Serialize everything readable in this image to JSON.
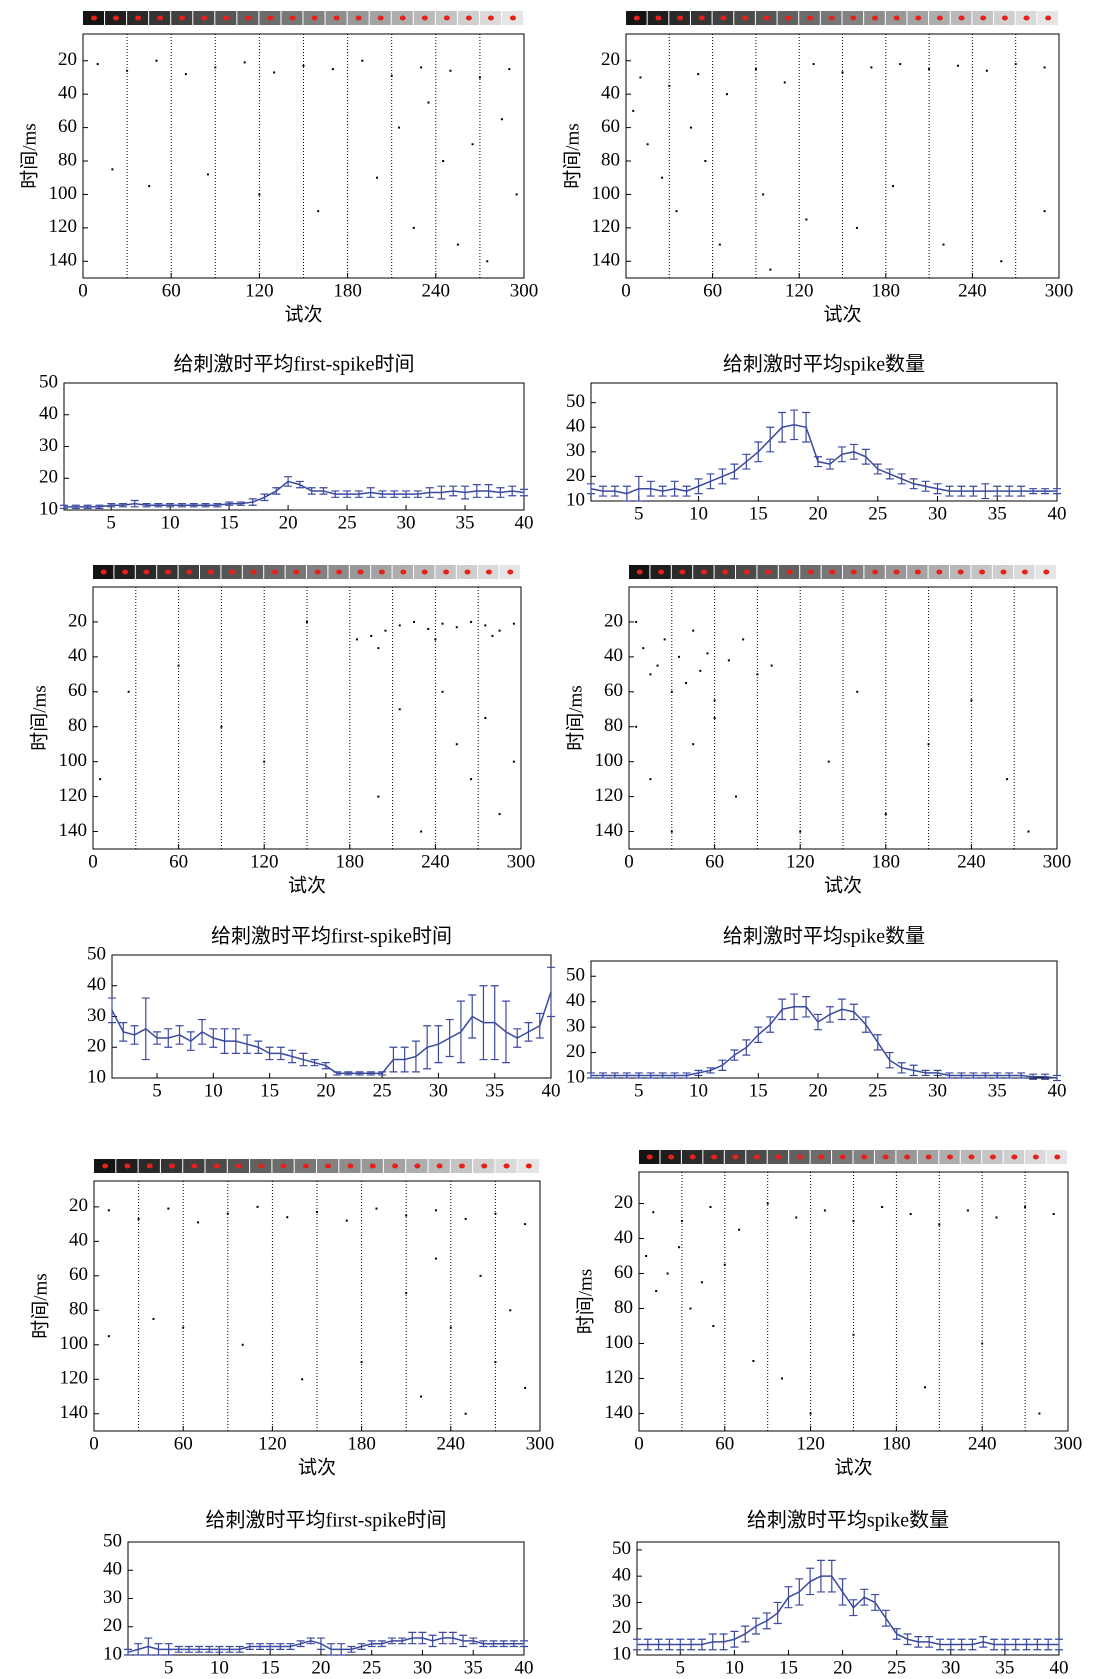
{
  "chart_data": [
    {
      "type": "raster",
      "xlabel": "试次",
      "ylabel": "时间/ms",
      "xlim": [
        0,
        300
      ],
      "ylim": [
        150,
        4
      ],
      "xticks": [
        0,
        60,
        120,
        180,
        240,
        300
      ],
      "yticks": [
        20,
        40,
        60,
        80,
        100,
        120,
        140
      ],
      "dividers": [
        30,
        60,
        90,
        120,
        150,
        180,
        210,
        240,
        270
      ],
      "color": "#000000",
      "x": [
        10,
        30,
        50,
        70,
        90,
        110,
        130,
        150,
        170,
        190,
        210,
        230,
        250,
        270,
        290,
        20,
        45,
        85,
        120,
        160,
        200,
        215,
        225,
        235,
        245,
        255,
        265,
        275,
        285,
        295
      ],
      "values": [
        22,
        26,
        20,
        28,
        24,
        21,
        27,
        23,
        25,
        20,
        29,
        24,
        26,
        30,
        25,
        85,
        95,
        88,
        100,
        110,
        90,
        60,
        120,
        45,
        80,
        130,
        70,
        140,
        55,
        100
      ]
    },
    {
      "type": "raster",
      "xlabel": "试次",
      "ylabel": "时间/ms",
      "xlim": [
        0,
        300
      ],
      "ylim": [
        150,
        4
      ],
      "xticks": [
        0,
        60,
        120,
        180,
        240,
        300
      ],
      "yticks": [
        20,
        40,
        60,
        80,
        100,
        120,
        140
      ],
      "dividers": [
        30,
        60,
        90,
        120,
        150,
        180,
        210,
        240,
        270
      ],
      "color": "#000000",
      "x": [
        10,
        30,
        50,
        70,
        90,
        110,
        130,
        150,
        170,
        190,
        210,
        230,
        250,
        270,
        290,
        5,
        15,
        25,
        35,
        45,
        55,
        65,
        95,
        100,
        125,
        160,
        185,
        220,
        260,
        290
      ],
      "values": [
        30,
        35,
        28,
        40,
        25,
        33,
        22,
        27,
        24,
        22,
        25,
        23,
        26,
        22,
        24,
        50,
        70,
        90,
        110,
        60,
        80,
        130,
        100,
        145,
        115,
        120,
        95,
        130,
        140,
        110
      ]
    },
    {
      "type": "line",
      "title": "给刺激时平均first-spike时间",
      "color": "#3b4aa0",
      "xlim": [
        1,
        40
      ],
      "ylim": [
        10,
        50
      ],
      "xticks": [
        5,
        10,
        15,
        20,
        25,
        30,
        35,
        40
      ],
      "yticks": [
        10,
        20,
        30,
        40,
        50
      ],
      "x": [
        1,
        2,
        3,
        4,
        5,
        6,
        7,
        8,
        9,
        10,
        11,
        12,
        13,
        14,
        15,
        16,
        17,
        18,
        19,
        20,
        21,
        22,
        23,
        24,
        25,
        26,
        27,
        28,
        29,
        30,
        31,
        32,
        33,
        34,
        35,
        36,
        37,
        38,
        39,
        40
      ],
      "values": [
        11,
        11,
        11,
        11,
        11.5,
        11.5,
        12,
        11.5,
        11.5,
        11.5,
        11.5,
        11.5,
        11.5,
        11.5,
        12,
        12,
        12.5,
        14,
        16,
        19,
        18,
        16,
        16,
        15,
        15,
        15,
        15.5,
        15,
        15,
        15,
        15,
        15.5,
        15.5,
        16,
        15.5,
        16,
        16,
        15.5,
        16,
        15.5
      ],
      "errors": [
        0.5,
        0.5,
        0.5,
        0.5,
        0.5,
        0.5,
        1,
        0.5,
        0.5,
        0.5,
        0.5,
        0.5,
        0.5,
        0.5,
        0.5,
        0.5,
        1,
        1,
        1,
        1.5,
        1,
        1,
        1,
        1,
        1,
        1,
        1.5,
        1,
        1,
        1,
        1,
        1.5,
        2,
        1.5,
        2,
        2,
        2,
        1.5,
        1.5,
        1
      ]
    },
    {
      "type": "line",
      "title": "给刺激时平均spike数量",
      "color": "#3b4aa0",
      "xlim": [
        1,
        40
      ],
      "ylim": [
        10,
        58
      ],
      "xticks": [
        5,
        10,
        15,
        20,
        25,
        30,
        35,
        40
      ],
      "yticks": [
        10,
        20,
        30,
        40,
        50
      ],
      "x": [
        1,
        2,
        3,
        4,
        5,
        6,
        7,
        8,
        9,
        10,
        11,
        12,
        13,
        14,
        15,
        16,
        17,
        18,
        19,
        20,
        21,
        22,
        23,
        24,
        25,
        26,
        27,
        28,
        29,
        30,
        31,
        32,
        33,
        34,
        35,
        36,
        37,
        38,
        39,
        40
      ],
      "values": [
        15,
        14,
        14,
        13,
        15,
        15,
        14,
        15,
        14,
        16,
        18,
        20,
        22,
        26,
        30,
        35,
        40,
        41,
        40,
        26,
        25,
        29,
        30,
        28,
        23,
        21,
        19,
        17,
        16,
        15,
        14,
        14,
        14,
        14,
        14,
        14,
        14,
        14,
        14,
        14
      ],
      "errors": [
        2,
        2,
        2,
        3,
        5,
        3,
        2,
        3,
        2,
        3,
        3,
        3,
        3,
        3,
        4,
        5,
        6,
        6,
        6,
        2,
        2,
        3,
        3,
        3,
        2,
        2,
        2,
        2,
        2,
        2,
        2,
        2,
        2,
        3,
        2,
        2,
        2,
        1,
        1,
        1
      ]
    },
    {
      "type": "raster",
      "xlabel": "试次",
      "ylabel": "时间/ms",
      "xlim": [
        0,
        300
      ],
      "ylim": [
        150,
        0
      ],
      "xticks": [
        0,
        60,
        120,
        180,
        240,
        300
      ],
      "yticks": [
        20,
        40,
        60,
        80,
        100,
        120,
        140
      ],
      "dividers": [
        30,
        60,
        90,
        120,
        150,
        180,
        210,
        240,
        270
      ],
      "color": "#000000",
      "x": [
        185,
        195,
        205,
        215,
        225,
        235,
        245,
        255,
        265,
        275,
        285,
        295,
        200,
        240,
        280,
        5,
        25,
        60,
        90,
        120,
        150,
        200,
        215,
        230,
        245,
        255,
        265,
        275,
        285,
        295
      ],
      "values": [
        30,
        28,
        25,
        22,
        20,
        24,
        21,
        23,
        20,
        22,
        25,
        21,
        35,
        30,
        28,
        110,
        60,
        45,
        80,
        100,
        20,
        120,
        70,
        140,
        60,
        90,
        110,
        75,
        130,
        100
      ]
    },
    {
      "type": "raster",
      "xlabel": "试次",
      "ylabel": "时间/ms",
      "xlim": [
        0,
        300
      ],
      "ylim": [
        150,
        0
      ],
      "xticks": [
        0,
        60,
        120,
        180,
        240,
        300
      ],
      "yticks": [
        20,
        40,
        60,
        80,
        100,
        120,
        140
      ],
      "dividers": [
        30,
        60,
        90,
        120,
        150,
        180,
        210,
        240,
        270
      ],
      "color": "#000000",
      "x": [
        5,
        10,
        15,
        20,
        25,
        30,
        35,
        40,
        45,
        50,
        55,
        60,
        70,
        80,
        90,
        5,
        15,
        30,
        45,
        60,
        75,
        100,
        120,
        140,
        160,
        180,
        210,
        240,
        265,
        280
      ],
      "values": [
        20,
        35,
        50,
        45,
        30,
        60,
        40,
        55,
        25,
        48,
        38,
        65,
        42,
        30,
        50,
        80,
        110,
        140,
        90,
        75,
        120,
        45,
        140,
        100,
        60,
        130,
        90,
        65,
        110,
        140
      ]
    },
    {
      "type": "line",
      "title": "给刺激时平均first-spike时间",
      "color": "#3b4aa0",
      "xlim": [
        1,
        40
      ],
      "ylim": [
        10,
        50
      ],
      "xticks": [
        5,
        10,
        15,
        20,
        25,
        30,
        35,
        40
      ],
      "yticks": [
        10,
        20,
        30,
        40,
        50
      ],
      "x": [
        1,
        2,
        3,
        4,
        5,
        6,
        7,
        8,
        9,
        10,
        11,
        12,
        13,
        14,
        15,
        16,
        17,
        18,
        19,
        20,
        21,
        22,
        23,
        24,
        25,
        26,
        27,
        28,
        29,
        30,
        31,
        32,
        33,
        34,
        35,
        36,
        37,
        38,
        39,
        40
      ],
      "values": [
        32,
        25,
        24,
        26,
        23,
        23,
        24,
        22,
        25,
        23,
        22,
        22,
        21,
        20,
        18,
        18,
        17,
        16,
        15,
        14,
        11.5,
        11.5,
        11.5,
        11.5,
        11.5,
        16,
        16,
        17,
        20,
        21,
        23,
        25,
        30,
        28,
        28,
        25,
        23,
        25,
        27,
        38
      ],
      "errors": [
        4,
        3,
        3,
        10,
        2,
        3,
        3,
        3,
        4,
        3,
        4,
        4,
        3,
        2,
        2,
        2,
        2,
        2,
        1,
        1,
        0.5,
        0.5,
        0.5,
        0.5,
        0.5,
        4,
        4,
        5,
        7,
        6,
        6,
        10,
        7,
        12,
        12,
        10,
        3,
        3,
        4,
        8
      ]
    },
    {
      "type": "line",
      "title": "给刺激时平均spike数量",
      "color": "#3b4aa0",
      "xlim": [
        1,
        40
      ],
      "ylim": [
        10,
        56
      ],
      "xticks": [
        5,
        10,
        15,
        20,
        25,
        30,
        35,
        40
      ],
      "yticks": [
        10,
        20,
        30,
        40,
        50
      ],
      "x": [
        1,
        2,
        3,
        4,
        5,
        6,
        7,
        8,
        9,
        10,
        11,
        12,
        13,
        14,
        15,
        16,
        17,
        18,
        19,
        20,
        21,
        22,
        23,
        24,
        25,
        26,
        27,
        28,
        29,
        30,
        31,
        32,
        33,
        34,
        35,
        36,
        37,
        38,
        39,
        40
      ],
      "values": [
        11,
        11,
        11,
        11,
        11,
        11,
        11,
        11,
        11,
        12,
        13,
        15,
        19,
        22,
        27,
        31,
        37,
        38,
        38,
        32,
        35,
        37,
        36,
        31,
        24,
        17,
        14,
        13,
        12,
        12,
        11,
        11,
        11,
        11,
        11,
        11,
        11,
        10.5,
        10.5,
        10
      ],
      "errors": [
        1,
        1,
        1,
        1,
        1,
        1,
        1,
        1,
        1,
        1,
        1,
        2,
        2,
        3,
        3,
        3,
        4,
        5,
        4,
        3,
        3,
        4,
        3,
        3,
        3,
        3,
        2,
        2,
        1,
        1,
        1,
        1,
        1,
        1,
        1,
        1,
        1,
        1,
        1,
        1
      ]
    },
    {
      "type": "raster",
      "xlabel": "试次",
      "ylabel": "时间/ms",
      "xlim": [
        0,
        300
      ],
      "ylim": [
        150,
        5
      ],
      "xticks": [
        0,
        60,
        120,
        180,
        240,
        300
      ],
      "yticks": [
        20,
        40,
        60,
        80,
        100,
        120,
        140
      ],
      "dividers": [
        30,
        60,
        90,
        120,
        150,
        180,
        210,
        240,
        270
      ],
      "color": "#000000",
      "x": [
        10,
        30,
        50,
        70,
        90,
        110,
        130,
        150,
        170,
        190,
        210,
        230,
        250,
        270,
        290,
        10,
        40,
        60,
        100,
        140,
        180,
        210,
        220,
        230,
        240,
        250,
        260,
        270,
        280,
        290
      ],
      "values": [
        22,
        27,
        21,
        29,
        24,
        20,
        26,
        23,
        28,
        21,
        25,
        22,
        27,
        24,
        30,
        95,
        85,
        90,
        100,
        120,
        110,
        70,
        130,
        50,
        90,
        140,
        60,
        110,
        80,
        125
      ]
    },
    {
      "type": "raster",
      "xlabel": "试次",
      "ylabel": "时间/ms",
      "xlim": [
        0,
        300
      ],
      "ylim": [
        150,
        2
      ],
      "xticks": [
        0,
        60,
        120,
        180,
        240,
        300
      ],
      "yticks": [
        20,
        40,
        60,
        80,
        100,
        120,
        140
      ],
      "dividers": [
        30,
        60,
        90,
        120,
        150,
        180,
        210,
        240,
        270
      ],
      "color": "#000000",
      "x": [
        10,
        30,
        50,
        70,
        90,
        110,
        130,
        150,
        170,
        190,
        210,
        230,
        250,
        270,
        290,
        5,
        12,
        20,
        28,
        36,
        44,
        52,
        60,
        80,
        100,
        120,
        150,
        200,
        240,
        280
      ],
      "values": [
        25,
        30,
        22,
        35,
        20,
        28,
        24,
        30,
        22,
        26,
        32,
        24,
        28,
        22,
        26,
        50,
        70,
        60,
        45,
        80,
        65,
        90,
        55,
        110,
        120,
        140,
        95,
        125,
        100,
        140
      ]
    },
    {
      "type": "line",
      "title": "给刺激时平均first-spike时间",
      "color": "#3b4aa0",
      "xlim": [
        1,
        40
      ],
      "ylim": [
        10,
        50
      ],
      "xticks": [
        5,
        10,
        15,
        20,
        25,
        30,
        35,
        40
      ],
      "yticks": [
        10,
        20,
        30,
        40,
        50
      ],
      "x": [
        1,
        2,
        3,
        4,
        5,
        6,
        7,
        8,
        9,
        10,
        11,
        12,
        13,
        14,
        15,
        16,
        17,
        18,
        19,
        20,
        21,
        22,
        23,
        24,
        25,
        26,
        27,
        28,
        29,
        30,
        31,
        32,
        33,
        34,
        35,
        36,
        37,
        38,
        39,
        40
      ],
      "values": [
        11,
        12,
        13,
        12,
        12,
        12,
        12,
        12,
        12,
        12,
        12,
        12,
        13,
        13,
        13,
        13,
        13,
        14,
        15,
        14,
        12,
        12,
        12,
        13,
        14,
        14,
        15,
        15,
        16,
        16,
        15,
        16,
        16,
        15,
        15,
        14,
        14,
        14,
        14,
        14
      ],
      "errors": [
        1,
        2,
        3,
        2,
        2,
        1,
        1,
        1,
        1,
        1,
        1,
        1,
        1,
        1,
        1,
        1,
        1,
        1,
        1,
        2,
        2,
        2,
        1,
        1,
        1,
        1,
        1,
        1,
        2,
        2,
        2,
        2,
        2,
        2,
        1,
        1,
        1,
        1,
        1,
        1
      ]
    },
    {
      "type": "line",
      "title": "给刺激时平均spike数量",
      "color": "#3b4aa0",
      "xlim": [
        1,
        40
      ],
      "ylim": [
        10,
        53
      ],
      "xticks": [
        5,
        10,
        15,
        20,
        25,
        30,
        35,
        40
      ],
      "yticks": [
        10,
        20,
        30,
        40,
        50
      ],
      "x": [
        1,
        2,
        3,
        4,
        5,
        6,
        7,
        8,
        9,
        10,
        11,
        12,
        13,
        14,
        15,
        16,
        17,
        18,
        19,
        20,
        21,
        22,
        23,
        24,
        25,
        26,
        27,
        28,
        29,
        30,
        31,
        32,
        33,
        34,
        35,
        36,
        37,
        38,
        39,
        40
      ],
      "values": [
        14,
        14,
        14,
        14,
        14,
        14,
        14,
        15,
        15,
        16,
        18,
        21,
        23,
        26,
        32,
        34,
        38,
        40,
        40,
        34,
        28,
        32,
        30,
        24,
        18,
        16,
        15,
        15,
        14,
        14,
        14,
        14,
        15,
        14,
        14,
        14,
        14,
        14,
        14,
        14
      ],
      "errors": [
        2,
        2,
        2,
        2,
        2,
        2,
        2,
        3,
        3,
        3,
        3,
        3,
        3,
        4,
        4,
        5,
        5,
        6,
        6,
        5,
        3,
        3,
        3,
        3,
        2,
        2,
        2,
        2,
        2,
        2,
        2,
        2,
        2,
        2,
        2,
        2,
        2,
        2,
        2,
        2
      ]
    }
  ]
}
